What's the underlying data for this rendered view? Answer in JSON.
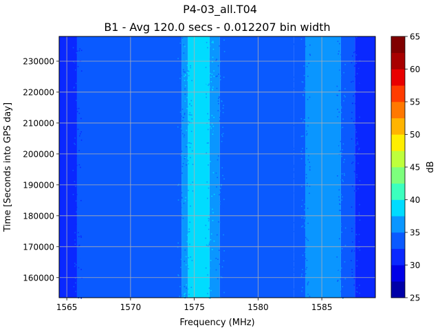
{
  "chart_data": {
    "type": "heatmap",
    "title": "P4-03_all.T04",
    "subtitle": "B1 - Avg 120.0 secs - 0.012207 bin width",
    "xlabel": "Frequency (MHz)",
    "ylabel": "Time [Seconds into GPS day]",
    "xlim": [
      1564.4,
      1589.2
    ],
    "ylim": [
      153500,
      238000
    ],
    "x_ticks": [
      "1565",
      "1570",
      "1575",
      "1580",
      "1585"
    ],
    "x_tick_values": [
      1565,
      1570,
      1575,
      1580,
      1585
    ],
    "y_ticks": [
      "160000",
      "170000",
      "180000",
      "190000",
      "200000",
      "210000",
      "220000",
      "230000"
    ],
    "y_tick_values": [
      160000,
      170000,
      180000,
      190000,
      200000,
      210000,
      220000,
      230000
    ],
    "grid": true,
    "colorbar": {
      "label": "dB",
      "ticks": [
        "25",
        "30",
        "35",
        "40",
        "45",
        "50",
        "55",
        "60",
        "65"
      ],
      "tick_values": [
        25,
        30,
        35,
        40,
        45,
        50,
        55,
        60,
        65
      ],
      "levels": [
        25,
        27.5,
        30,
        32.5,
        35,
        37.5,
        40,
        42.5,
        45,
        47.5,
        50,
        52.5,
        55,
        57.5,
        60,
        62.5,
        65
      ],
      "colors": [
        "#0000a8",
        "#0000e8",
        "#0a28ff",
        "#0a5aff",
        "#0a96ff",
        "#00dcff",
        "#3cffbe",
        "#7dff7d",
        "#beff3c",
        "#ffee00",
        "#ffb400",
        "#ff7800",
        "#ff3c00",
        "#e80000",
        "#a80000",
        "#800000"
      ]
    },
    "frequency_profile": [
      {
        "x0": 1564.4,
        "x1": 1565.8,
        "value": 30
      },
      {
        "x0": 1565.8,
        "x1": 1574.0,
        "value": 33
      },
      {
        "x0": 1574.0,
        "x1": 1574.5,
        "value": 36
      },
      {
        "x0": 1574.5,
        "x1": 1576.2,
        "value": 38.5
      },
      {
        "x0": 1576.2,
        "x1": 1577.0,
        "value": 36
      },
      {
        "x0": 1577.0,
        "x1": 1582.8,
        "value": 33
      },
      {
        "x0": 1582.8,
        "x1": 1583.7,
        "value": 34
      },
      {
        "x0": 1583.7,
        "x1": 1586.5,
        "value": 36
      },
      {
        "x0": 1586.5,
        "x1": 1587.6,
        "value": 33
      },
      {
        "x0": 1587.6,
        "x1": 1589.2,
        "value": 30
      }
    ]
  }
}
